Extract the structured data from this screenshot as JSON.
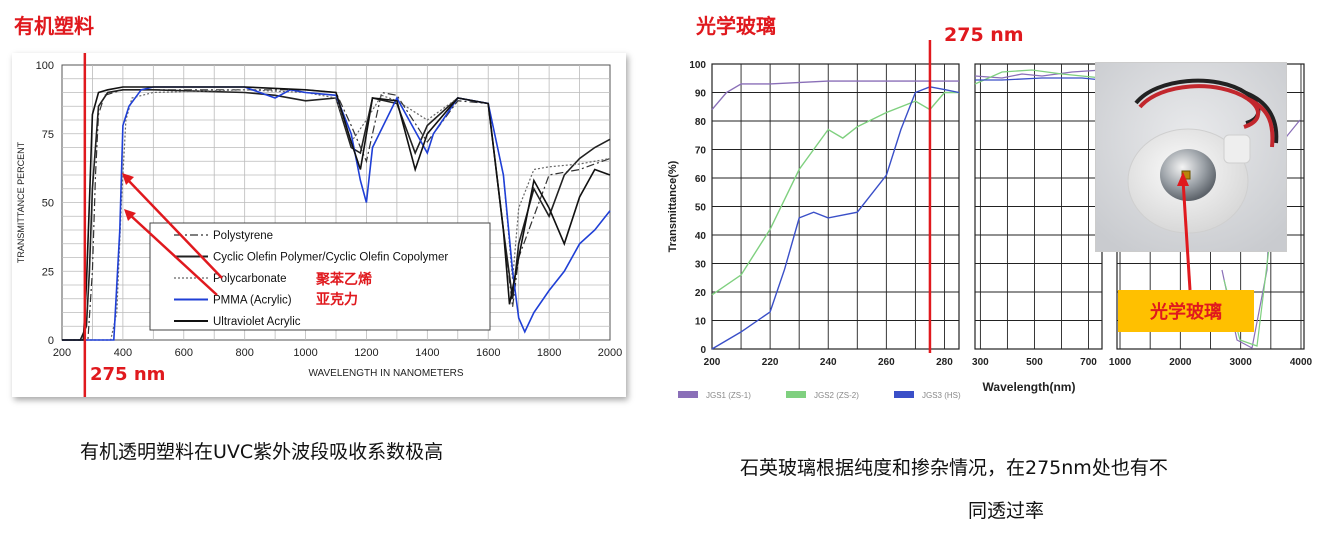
{
  "left": {
    "heading": "有机塑料",
    "caption": "有机透明塑料在UVC紫外波段吸收系数极高",
    "marker_label": "275 nm",
    "annotation_1": "聚苯乙烯",
    "annotation_2": "亚克力"
  },
  "right": {
    "heading": "光学玻璃",
    "caption_line1": "石英玻璃根据纯度和掺杂情况，在275nm处也有不",
    "caption_line2": "同透过率",
    "marker_label": "275 nm",
    "photo_tag": "光学玻璃"
  },
  "chart_data": [
    {
      "type": "line",
      "title": "",
      "xlabel": "WAVELENGTH IN NANOMETERS",
      "ylabel": "TRANSMITTANCE PERCENT",
      "xlim": [
        200,
        2000
      ],
      "ylim": [
        0,
        100
      ],
      "xticks": [
        200,
        400,
        600,
        800,
        1000,
        1200,
        1400,
        1600,
        1800,
        2000
      ],
      "yticks": [
        0,
        25,
        50,
        75,
        100
      ],
      "grid": true,
      "legend_position": "center",
      "marker_x": 275,
      "series": [
        {
          "name": "Polystyrene",
          "color": "#333333",
          "style": "dashdot",
          "x": [
            200,
            270,
            285,
            300,
            310,
            320,
            340,
            370,
            400,
            500,
            800,
            1000,
            1100,
            1150,
            1200,
            1250,
            1300,
            1400,
            1500,
            1600,
            1650,
            1680,
            1700,
            1800,
            1900,
            2000
          ],
          "y": [
            0,
            0,
            0,
            25,
            60,
            82,
            89,
            90,
            91,
            91,
            91,
            91,
            90,
            78,
            65,
            90,
            89,
            72,
            87,
            86,
            40,
            12,
            30,
            60,
            62,
            66
          ]
        },
        {
          "name": "Cyclic Olefin Polymer/Cyclic Olefin Copolymer",
          "color": "#222222",
          "style": "solid",
          "x": [
            200,
            260,
            280,
            290,
            300,
            320,
            350,
            400,
            500,
            800,
            900,
            1000,
            1100,
            1150,
            1180,
            1220,
            1300,
            1360,
            1400,
            1500,
            1600,
            1650,
            1680,
            1700,
            1750,
            1800,
            1850,
            1900,
            1950,
            2000
          ],
          "y": [
            0,
            0,
            5,
            25,
            55,
            85,
            90,
            91,
            91,
            90,
            89,
            87,
            88,
            70,
            68,
            88,
            86,
            68,
            78,
            88,
            86,
            40,
            15,
            35,
            55,
            45,
            60,
            66,
            70,
            73
          ]
        },
        {
          "name": "Polycarbonate",
          "color": "#666666",
          "style": "dotted",
          "x": [
            200,
            360,
            380,
            395,
            410,
            430,
            500,
            800,
            1000,
            1100,
            1150,
            1200,
            1250,
            1300,
            1400,
            1500,
            1600,
            1650,
            1680,
            1700,
            1750,
            1800,
            1900,
            2000
          ],
          "y": [
            0,
            0,
            10,
            50,
            80,
            88,
            90,
            91,
            90,
            88,
            72,
            80,
            89,
            87,
            80,
            88,
            86,
            60,
            22,
            48,
            62,
            63,
            64,
            66
          ]
        },
        {
          "name": "PMMA (Acrylic)",
          "color": "#1f3fd6",
          "style": "solid",
          "x": [
            200,
            370,
            390,
            400,
            420,
            460,
            500,
            800,
            900,
            950,
            1000,
            1100,
            1150,
            1180,
            1200,
            1220,
            1300,
            1400,
            1420,
            1500,
            1600,
            1650,
            1680,
            1700,
            1720,
            1750,
            1800,
            1850,
            1900,
            1950,
            2000
          ],
          "y": [
            0,
            0,
            40,
            78,
            85,
            91,
            92,
            92,
            88,
            91,
            90,
            89,
            75,
            58,
            50,
            70,
            88,
            68,
            75,
            88,
            86,
            60,
            25,
            8,
            3,
            10,
            18,
            25,
            35,
            40,
            47
          ]
        },
        {
          "name": "Ultraviolet  Acrylic",
          "color": "#111111",
          "style": "solid",
          "x": [
            200,
            270,
            280,
            290,
            300,
            320,
            350,
            400,
            500,
            800,
            1000,
            1100,
            1150,
            1180,
            1220,
            1300,
            1360,
            1400,
            1500,
            1600,
            1650,
            1670,
            1700,
            1750,
            1800,
            1850,
            1900,
            1950,
            2000
          ],
          "y": [
            0,
            0,
            20,
            50,
            82,
            90,
            91,
            92,
            92,
            92,
            91,
            90,
            72,
            62,
            88,
            87,
            62,
            75,
            88,
            86,
            40,
            13,
            30,
            58,
            48,
            35,
            52,
            62,
            60
          ]
        }
      ]
    },
    {
      "type": "line",
      "title": "",
      "xlabel": "Wavelength(nm)",
      "ylabel": "Transmittance(%)",
      "ylim": [
        0,
        100
      ],
      "xticks": [
        200,
        220,
        240,
        260,
        280,
        300,
        500,
        700,
        1000,
        2000,
        3000,
        4000
      ],
      "yticks": [
        0,
        10,
        20,
        30,
        40,
        50,
        60,
        70,
        80,
        90,
        100
      ],
      "grid": true,
      "legend_position": "bottom",
      "marker_x": 275,
      "series": [
        {
          "name": "JGS1 (ZS-1)",
          "color": "#8a6fb8",
          "x": [
            200,
            205,
            210,
            220,
            240,
            260,
            280,
            285
          ],
          "y": [
            84,
            90,
            93,
            93,
            94,
            94,
            94,
            94
          ]
        },
        {
          "name": "JGS2 (ZS-2)",
          "color": "#7fd07f",
          "x": [
            200,
            210,
            220,
            230,
            240,
            245,
            250,
            260,
            270,
            275,
            280,
            285
          ],
          "y": [
            19,
            26,
            42,
            63,
            77,
            74,
            78,
            83,
            87,
            84,
            90,
            90
          ]
        },
        {
          "name": "JGS3 (HS)",
          "color": "#3a4fc8",
          "x": [
            200,
            210,
            220,
            225,
            230,
            235,
            240,
            250,
            260,
            265,
            270,
            275,
            280,
            285
          ],
          "y": [
            0,
            6,
            13,
            28,
            46,
            48,
            46,
            48,
            61,
            77,
            90,
            92,
            91,
            90
          ]
        }
      ]
    }
  ]
}
